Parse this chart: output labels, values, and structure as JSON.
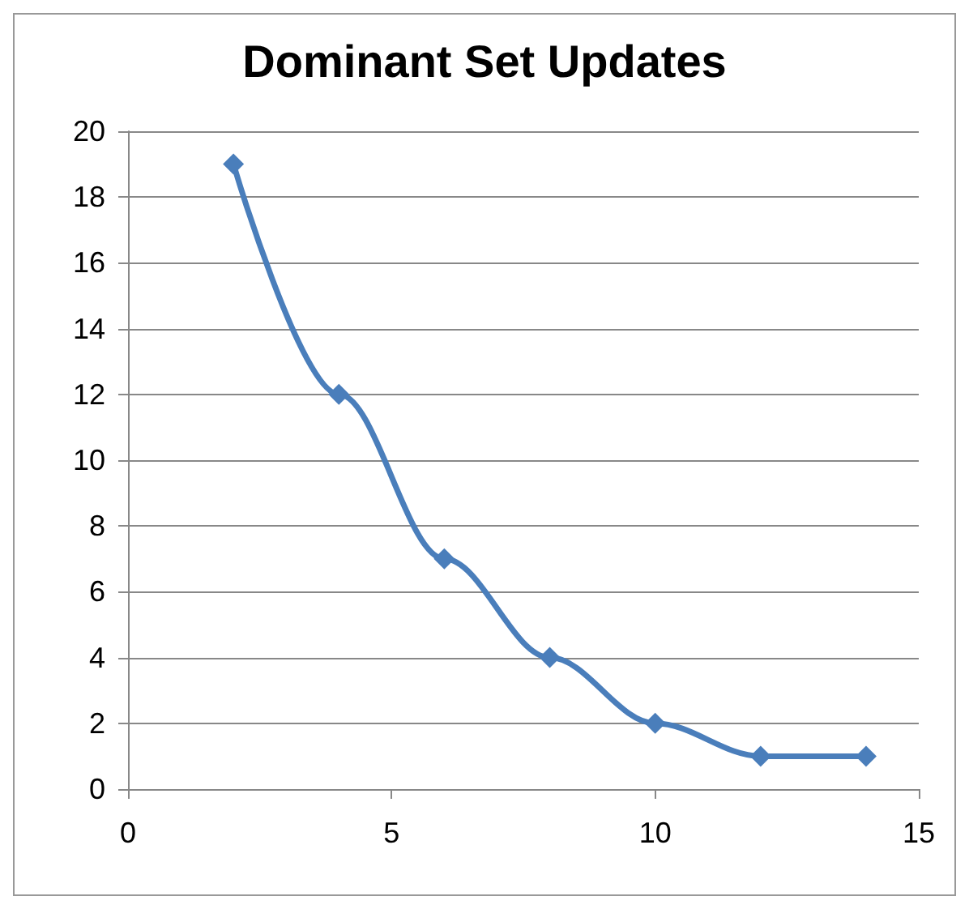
{
  "chart_data": {
    "type": "line",
    "title": "Dominant Set Updates",
    "x": [
      2,
      4,
      6,
      8,
      10,
      12,
      14
    ],
    "series": [
      {
        "color": "#4a7ebb",
        "values": [
          19,
          12,
          7,
          4,
          2,
          1,
          1
        ]
      }
    ],
    "xlim": [
      0,
      15
    ],
    "xticks": [
      0,
      5,
      10,
      15
    ],
    "ylim": [
      0,
      20
    ],
    "yticks": [
      0,
      2,
      4,
      6,
      8,
      10,
      12,
      14,
      16,
      18,
      20
    ],
    "grid": "y",
    "marker": "diamond",
    "line_style": "solid"
  }
}
